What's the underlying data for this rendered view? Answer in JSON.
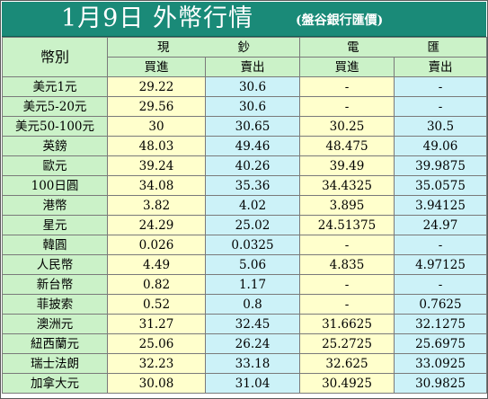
{
  "title": {
    "main": "1月9日 外幣行情",
    "source": "(盤谷銀行匯價)"
  },
  "headers": {
    "currency": "幣別",
    "cash_left": "現",
    "cash_right": "鈔",
    "spot_left": "電",
    "spot_right": "匯",
    "cash_buy": "買進",
    "cash_sell": "賣出",
    "spot_buy": "買進",
    "spot_sell": "賣出"
  },
  "rows": [
    {
      "currency": "美元1元",
      "cash_buy": "29.22",
      "cash_sell": "30.6",
      "spot_buy": "-",
      "spot_sell": "-"
    },
    {
      "currency": "美元5-20元",
      "cash_buy": "29.56",
      "cash_sell": "30.6",
      "spot_buy": "-",
      "spot_sell": "-"
    },
    {
      "currency": "美元50-100元",
      "cash_buy": "30",
      "cash_sell": "30.65",
      "spot_buy": "30.25",
      "spot_sell": "30.5"
    },
    {
      "currency": "英鎊",
      "cash_buy": "48.03",
      "cash_sell": "49.46",
      "spot_buy": "48.475",
      "spot_sell": "49.06"
    },
    {
      "currency": "歐元",
      "cash_buy": "39.24",
      "cash_sell": "40.26",
      "spot_buy": "39.49",
      "spot_sell": "39.9875"
    },
    {
      "currency": "100日圓",
      "cash_buy": "34.08",
      "cash_sell": "35.36",
      "spot_buy": "34.4325",
      "spot_sell": "35.0575"
    },
    {
      "currency": "港幣",
      "cash_buy": "3.82",
      "cash_sell": "4.02",
      "spot_buy": "3.895",
      "spot_sell": "3.94125"
    },
    {
      "currency": "星元",
      "cash_buy": "24.29",
      "cash_sell": "25.02",
      "spot_buy": "24.51375",
      "spot_sell": "24.97"
    },
    {
      "currency": "韓圓",
      "cash_buy": "0.026",
      "cash_sell": "0.0325",
      "spot_buy": "-",
      "spot_sell": "-"
    },
    {
      "currency": "人民幣",
      "cash_buy": "4.49",
      "cash_sell": "5.06",
      "spot_buy": "4.835",
      "spot_sell": "4.97125"
    },
    {
      "currency": "新台幣",
      "cash_buy": "0.82",
      "cash_sell": "1.17",
      "spot_buy": "-",
      "spot_sell": "-"
    },
    {
      "currency": "菲披索",
      "cash_buy": "0.52",
      "cash_sell": "0.8",
      "spot_buy": "-",
      "spot_sell": "0.7625"
    },
    {
      "currency": "澳洲元",
      "cash_buy": "31.27",
      "cash_sell": "32.45",
      "spot_buy": "31.6625",
      "spot_sell": "32.1275"
    },
    {
      "currency": "紐西蘭元",
      "cash_buy": "25.06",
      "cash_sell": "26.24",
      "spot_buy": "25.2725",
      "spot_sell": "25.6975"
    },
    {
      "currency": "瑞士法朗",
      "cash_buy": "32.23",
      "cash_sell": "33.18",
      "spot_buy": "32.625",
      "spot_sell": "33.0925"
    },
    {
      "currency": "加拿大元",
      "cash_buy": "30.08",
      "cash_sell": "31.04",
      "spot_buy": "30.4925",
      "spot_sell": "30.9825"
    }
  ],
  "colors": {
    "title_bg": "#1a8a78",
    "header_bg": "#cbf2c8",
    "buy_bg": "#ffffcc",
    "sell_bg": "#ccf2f8"
  }
}
